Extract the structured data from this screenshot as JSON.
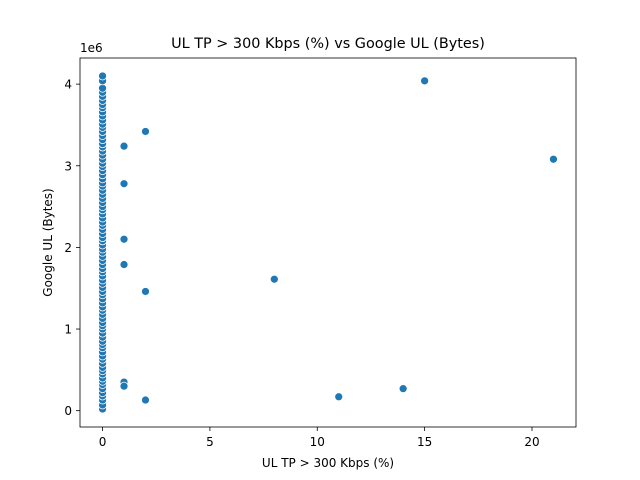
{
  "colors": {
    "marker": "#1f77b4",
    "marker_edge": "#ffffff",
    "axes": "#000000",
    "background": "#ffffff"
  },
  "chart_data": {
    "type": "scatter",
    "title": "UL TP > 300 Kbps (%) vs Google UL (Bytes)",
    "xlabel": "UL TP > 300 Kbps (%)",
    "ylabel": "Google UL (Bytes)",
    "y_offset_label": "1e6",
    "xlim": [
      -1.05,
      22.05
    ],
    "ylim": [
      -200000.0,
      4320000.0
    ],
    "grid": false,
    "legend": "none",
    "xticks": [
      {
        "value": 0,
        "label": "0"
      },
      {
        "value": 5,
        "label": "5"
      },
      {
        "value": 10,
        "label": "10"
      },
      {
        "value": 15,
        "label": "15"
      },
      {
        "value": 20,
        "label": "20"
      }
    ],
    "yticks": [
      {
        "value": 0,
        "label": "0"
      },
      {
        "value": 1000000,
        "label": "1"
      },
      {
        "value": 2000000,
        "label": "2"
      },
      {
        "value": 3000000,
        "label": "3"
      },
      {
        "value": 4000000,
        "label": "4"
      }
    ],
    "x": [
      0,
      0,
      0,
      0,
      0,
      0,
      0,
      0,
      0,
      0,
      0,
      0,
      0,
      0,
      0,
      0,
      0,
      0,
      0,
      0,
      0,
      0,
      0,
      0,
      0,
      0,
      0,
      0,
      0,
      0,
      0,
      0,
      0,
      0,
      0,
      0,
      0,
      0,
      0,
      0,
      0,
      0,
      0,
      0,
      0,
      0,
      0,
      0,
      0,
      0,
      0,
      0,
      0,
      0,
      0,
      0,
      0,
      0,
      0,
      0,
      0,
      0,
      0,
      0,
      0,
      0,
      0,
      0,
      0,
      0,
      0,
      0,
      0,
      0,
      0,
      0,
      0,
      0,
      0,
      0,
      0,
      0,
      0,
      0,
      0,
      0,
      1,
      1,
      1,
      1,
      1,
      1,
      1,
      2,
      2,
      2,
      8,
      11,
      14,
      15,
      21
    ],
    "y": [
      20000,
      70000,
      130000,
      180000,
      220000,
      270000,
      320000,
      360000,
      400000,
      450000,
      490000,
      530000,
      580000,
      630000,
      670000,
      720000,
      770000,
      810000,
      850000,
      900000,
      950000,
      1000000,
      1040000,
      1080000,
      1130000,
      1180000,
      1230000,
      1270000,
      1320000,
      1370000,
      1420000,
      1460000,
      1510000,
      1560000,
      1600000,
      1650000,
      1700000,
      1740000,
      1790000,
      1840000,
      1890000,
      1940000,
      1980000,
      2030000,
      2080000,
      2120000,
      2170000,
      2220000,
      2270000,
      2310000,
      2360000,
      2410000,
      2460000,
      2500000,
      2550000,
      2600000,
      2650000,
      2700000,
      2750000,
      2790000,
      2840000,
      2890000,
      2940000,
      2990000,
      3030000,
      3080000,
      3130000,
      3180000,
      3230000,
      3270000,
      3320000,
      3370000,
      3420000,
      3470000,
      3510000,
      3560000,
      3610000,
      3660000,
      3710000,
      3750000,
      3800000,
      3850000,
      3900000,
      3950000,
      4040000,
      4100000,
      300000,
      350000,
      1790000,
      2100000,
      2780000,
      3240000,
      300000,
      130000,
      1460000,
      3420000,
      1610000,
      170000,
      270000,
      4040000,
      3080000
    ]
  }
}
